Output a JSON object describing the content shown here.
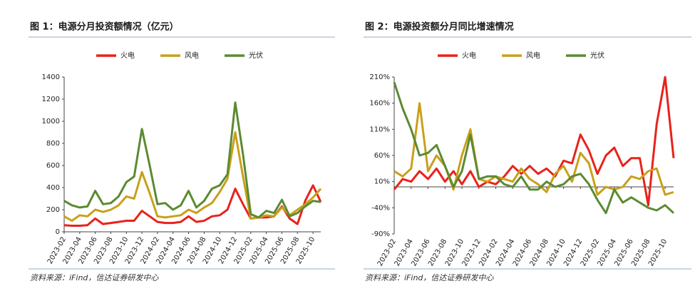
{
  "chart_data": [
    {
      "type": "line",
      "title": "图 1：电源分月投资额情况（亿元）",
      "source": "资料来源：iFind，信达证券研发中心",
      "categories": [
        "2023-02",
        null,
        "2023-04",
        null,
        "2023-06",
        null,
        "2023-08",
        null,
        "2023-10",
        null,
        "2023-12",
        null,
        "2024-02",
        null,
        "2024-04",
        null,
        "2024-06",
        null,
        "2024-08",
        null,
        "2024-10",
        null,
        "2024-12",
        null,
        "2025-02",
        null,
        "2025-04",
        null,
        "2025-06",
        null,
        "2025-08",
        null,
        "2025-10",
        null
      ],
      "ylim": [
        0,
        1400
      ],
      "yticks": [
        0,
        200,
        400,
        600,
        800,
        1000,
        1200,
        1400
      ],
      "legend": "top",
      "series": [
        {
          "name": "火电",
          "color": "#e8221a",
          "values": [
            60,
            55,
            55,
            60,
            120,
            70,
            80,
            90,
            100,
            100,
            190,
            140,
            90,
            80,
            80,
            90,
            140,
            90,
            100,
            140,
            150,
            200,
            390,
            250,
            120,
            130,
            130,
            140,
            230,
            120,
            70,
            280,
            420,
            270
          ]
        },
        {
          "name": "风电",
          "color": "#c9a019",
          "values": [
            140,
            100,
            150,
            140,
            200,
            180,
            200,
            240,
            320,
            300,
            540,
            350,
            140,
            130,
            140,
            150,
            200,
            170,
            220,
            260,
            360,
            480,
            900,
            500,
            120,
            130,
            150,
            140,
            220,
            150,
            200,
            250,
            310,
            390
          ]
        },
        {
          "name": "光伏",
          "color": "#5b8a32",
          "values": [
            280,
            240,
            220,
            230,
            370,
            250,
            260,
            320,
            450,
            500,
            930,
            600,
            250,
            260,
            200,
            240,
            370,
            220,
            280,
            390,
            420,
            520,
            1170,
            700,
            160,
            130,
            190,
            170,
            290,
            140,
            170,
            230,
            280,
            270
          ]
        }
      ]
    },
    {
      "type": "line",
      "title": "图 2：电源投资额分月同比增速情况",
      "source": "资料来源：iFind，信达证券研发中心",
      "categories": [
        "2023-02",
        null,
        "2023-04",
        null,
        "2023-06",
        null,
        "2023-08",
        null,
        "2023-10",
        null,
        "2023-12",
        null,
        "2024-02",
        null,
        "2024-04",
        null,
        "2024-06",
        null,
        "2024-08",
        null,
        "2024-10",
        null,
        "2024-12",
        null,
        "2025-02",
        null,
        "2025-04",
        null,
        "2025-06",
        null,
        "2025-08",
        null,
        "2025-10",
        null
      ],
      "ylim": [
        -90,
        210
      ],
      "yticks": [
        {
          "value": -90,
          "label": "-90%"
        },
        {
          "value": -40,
          "label": "-40%"
        },
        {
          "value": 10,
          "label": "10%"
        },
        {
          "value": 60,
          "label": "60%"
        },
        {
          "value": 110,
          "label": "110%"
        },
        {
          "value": 160,
          "label": "160%"
        },
        {
          "value": 210,
          "label": "210%"
        }
      ],
      "legend": "top",
      "series": [
        {
          "name": "火电",
          "color": "#e8221a",
          "values": [
            -5,
            15,
            10,
            30,
            15,
            35,
            10,
            30,
            5,
            30,
            0,
            10,
            5,
            20,
            40,
            25,
            40,
            25,
            35,
            20,
            50,
            45,
            100,
            70,
            25,
            60,
            75,
            40,
            55,
            55,
            -35,
            120,
            210,
            55
          ]
        },
        {
          "name": "风电",
          "color": "#c9a019",
          "values": [
            30,
            20,
            35,
            160,
            30,
            60,
            40,
            -5,
            60,
            110,
            15,
            10,
            20,
            15,
            10,
            35,
            15,
            5,
            -10,
            25,
            40,
            10,
            65,
            45,
            -15,
            0,
            -5,
            0,
            20,
            15,
            30,
            35,
            -15,
            -10
          ]
        },
        {
          "name": "光伏",
          "color": "#5b8a32",
          "values": [
            200,
            150,
            110,
            60,
            65,
            80,
            40,
            0,
            30,
            100,
            15,
            20,
            20,
            5,
            0,
            20,
            -5,
            -5,
            10,
            0,
            5,
            20,
            25,
            5,
            -25,
            -50,
            -5,
            -30,
            -20,
            -30,
            -40,
            -45,
            -35,
            -50
          ]
        }
      ]
    }
  ]
}
